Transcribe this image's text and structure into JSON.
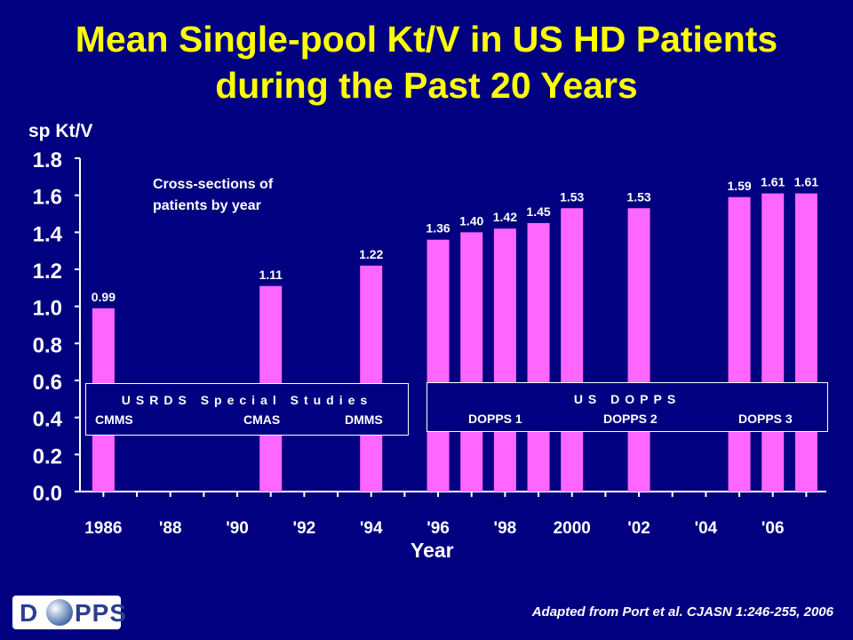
{
  "title_line1": "Mean Single-pool Kt/V in US HD Patients",
  "title_line2": "during the Past 20 Years",
  "chart_data": {
    "type": "bar",
    "ylabel": "sp Kt/V",
    "xlabel": "Year",
    "ylim": [
      0.0,
      1.8
    ],
    "xlim": [
      1985.3,
      2007.6
    ],
    "yticks": [
      "0.0",
      "0.2",
      "0.4",
      "0.6",
      "0.8",
      "1.0",
      "1.2",
      "1.4",
      "1.6",
      "1.8"
    ],
    "ytick_values": [
      0.0,
      0.2,
      0.4,
      0.6,
      0.8,
      1.0,
      1.2,
      1.4,
      1.6,
      1.8
    ],
    "xticks": [
      "1986",
      "'88",
      "'90",
      "'92",
      "'94",
      "'96",
      "'98",
      "2000",
      "'02",
      "'04",
      "'06"
    ],
    "xtick_values": [
      1986,
      1988,
      1990,
      1992,
      1994,
      1996,
      1998,
      2000,
      2002,
      2004,
      2006
    ],
    "years": [
      1986,
      1991,
      1994,
      1996,
      1997,
      1998,
      1999,
      2000,
      2002,
      2005,
      2006,
      2007
    ],
    "values": [
      0.99,
      1.11,
      1.22,
      1.36,
      1.4,
      1.42,
      1.45,
      1.53,
      1.53,
      1.59,
      1.61,
      1.61
    ],
    "data_labels": [
      "0.99",
      "1.11",
      "1.22",
      "1.36",
      "1.40",
      "1.42",
      "1.45",
      "1.53",
      "1.53",
      "1.59",
      "1.61",
      "1.61"
    ],
    "bar_color": "#FF66FF",
    "grid": false
  },
  "annotation": {
    "line1": "Cross-sections of",
    "line2": "patients by year"
  },
  "usrds_box": {
    "title": "USRDS Special Studies",
    "items": [
      "CMMS",
      "CMAS",
      "DMMS"
    ]
  },
  "dopps_box": {
    "title": "US DOPPS",
    "items": [
      "DOPPS 1",
      "DOPPS 2",
      "DOPPS 3"
    ]
  },
  "source": "Adapted from Port et al. CJASN 1:246-255, 2006",
  "logo": {
    "left": "D",
    "right": "PPS"
  },
  "colors": {
    "background": "#000080",
    "title": "#FFFF00",
    "text": "#FFFFFF",
    "bars": "#FF66FF"
  }
}
